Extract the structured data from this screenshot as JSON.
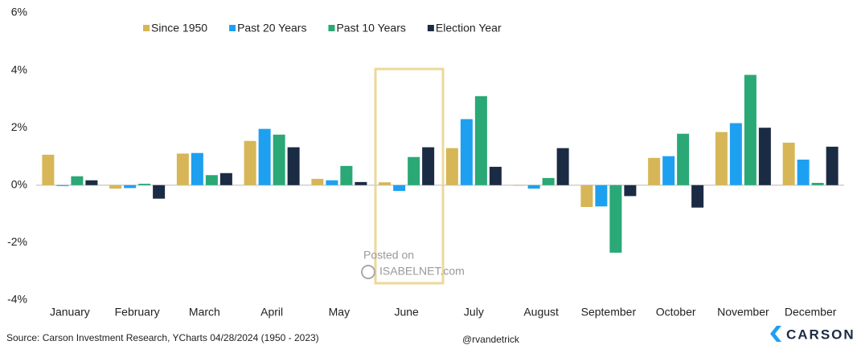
{
  "chart_data": {
    "type": "bar",
    "categories": [
      "January",
      "February",
      "March",
      "April",
      "May",
      "June",
      "July",
      "August",
      "September",
      "October",
      "November",
      "December"
    ],
    "series": [
      {
        "name": "Since 1950",
        "color": "#d6b656",
        "values": [
          1.06,
          -0.12,
          1.1,
          1.54,
          0.22,
          0.1,
          1.29,
          -0.02,
          -0.76,
          0.95,
          1.85,
          1.48
        ]
      },
      {
        "name": "Past 20 Years",
        "color": "#1ea0f0",
        "values": [
          -0.03,
          -0.1,
          1.12,
          1.96,
          0.17,
          -0.2,
          2.3,
          -0.12,
          -0.74,
          1.01,
          2.16,
          0.89
        ]
      },
      {
        "name": "Past 10 Years",
        "color": "#2aa876",
        "values": [
          0.31,
          0.05,
          0.35,
          1.76,
          0.67,
          0.98,
          3.1,
          0.25,
          -2.35,
          1.79,
          3.84,
          0.08
        ]
      },
      {
        "name": "Election Year",
        "color": "#1c2b44",
        "values": [
          0.17,
          -0.47,
          0.42,
          1.32,
          0.11,
          1.32,
          0.64,
          1.29,
          -0.38,
          -0.78,
          2.0,
          1.34
        ]
      }
    ],
    "ylim": [
      -4,
      6
    ],
    "yticks": [
      {
        "value": -4,
        "label": "-4%"
      },
      {
        "value": -2,
        "label": "-2%"
      },
      {
        "value": 0,
        "label": "0%"
      },
      {
        "value": 2,
        "label": "2%"
      },
      {
        "value": 4,
        "label": "4%"
      },
      {
        "value": 6,
        "label": "6%"
      }
    ],
    "grid": false,
    "legend": "top",
    "source": "Source: Carson Investment Research, YCharts 04/28/2024 (1950 - 2023)",
    "credit": "@rvandetrick",
    "logo": "CARSON",
    "watermark": [
      "Posted on",
      "ISABELNET.com"
    ]
  }
}
